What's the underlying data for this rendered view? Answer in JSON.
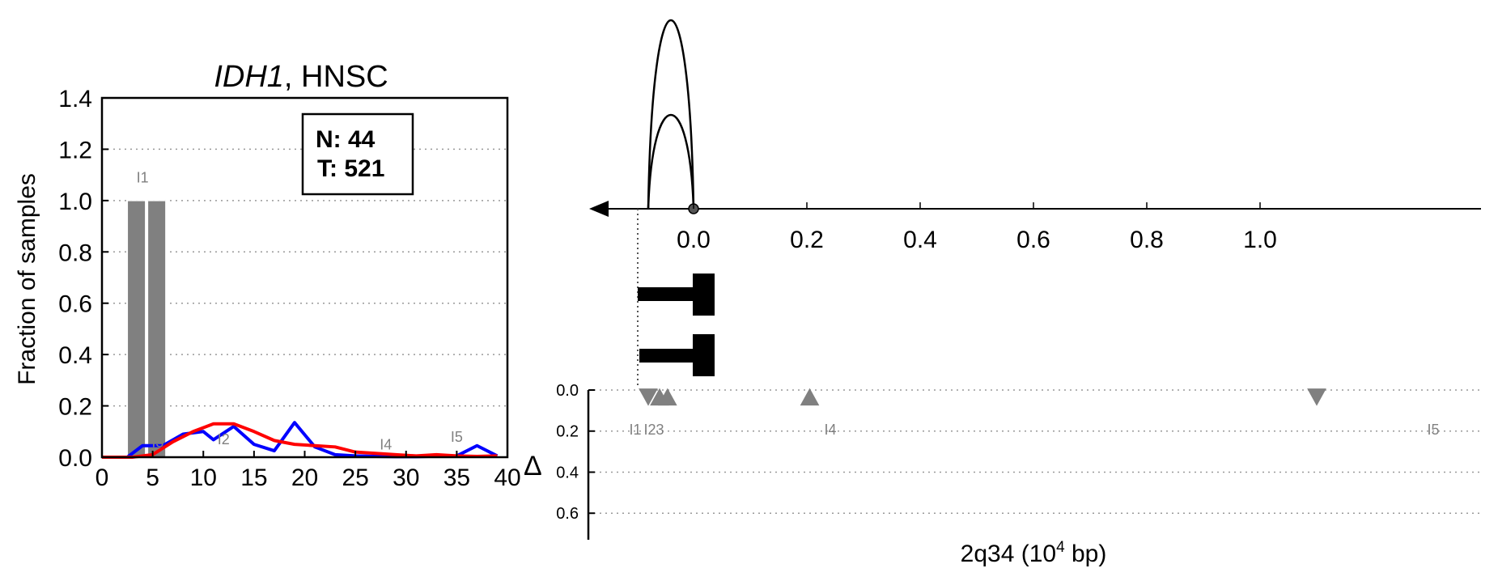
{
  "chart_data": [
    {
      "type": "bar",
      "title_gene": "IDH1",
      "title_rest": ", HNSC",
      "xlabel": "",
      "ylabel": "Fraction of samples",
      "xlim": [
        0,
        40
      ],
      "ylim": [
        0,
        1.4
      ],
      "xticks": [
        "0",
        "5",
        "10",
        "15",
        "20",
        "25",
        "30",
        "35",
        "40"
      ],
      "yticks": [
        "0.0",
        "0.2",
        "0.4",
        "0.6",
        "0.8",
        "1.0",
        "1.2",
        "1.4"
      ],
      "grid": "horizontal dotted",
      "legend_box": {
        "n_text": "N: 44",
        "t_text": "T: 521",
        "placement": "top-right"
      },
      "bars": [
        {
          "x0": 2.5,
          "x1": 4.3,
          "value": 1.0
        },
        {
          "x0": 4.5,
          "x1": 6.3,
          "value": 1.0
        }
      ],
      "bar_color": "#808080",
      "series": [
        {
          "color": "#0000ff",
          "x": [
            0,
            2.5,
            4,
            6,
            8,
            10,
            11,
            13,
            15,
            17,
            19,
            21,
            23,
            25,
            27,
            29,
            31,
            33,
            35,
            37,
            39
          ],
          "values": [
            0,
            0,
            0.045,
            0.045,
            0.09,
            0.1,
            0.068,
            0.12,
            0.05,
            0.025,
            0.135,
            0.04,
            0.01,
            0.005,
            0.003,
            0.002,
            0.002,
            0.004,
            0.005,
            0.045,
            0.005
          ]
        },
        {
          "color": "#ff0000",
          "x": [
            0,
            3,
            5,
            7,
            9,
            11,
            13,
            15,
            17,
            19,
            21,
            23,
            25,
            27,
            29,
            31,
            33,
            35,
            37,
            39
          ],
          "values": [
            0,
            0,
            0.01,
            0.06,
            0.1,
            0.13,
            0.13,
            0.1,
            0.065,
            0.05,
            0.045,
            0.04,
            0.02,
            0.015,
            0.01,
            0.005,
            0.01,
            0.005,
            0.003,
            0.005
          ]
        }
      ],
      "annotations": [
        {
          "label": "I1",
          "x": 4,
          "y": 1.07
        },
        {
          "label": "I2",
          "x": 12,
          "y": 0.05
        },
        {
          "label": "I3",
          "x": 5.5,
          "y": 0.04
        },
        {
          "label": "I4",
          "x": 28,
          "y": 0.03
        },
        {
          "label": "I5",
          "x": 35,
          "y": 0.06
        }
      ]
    },
    {
      "type": "scatter",
      "xlabel_main": "2q34 (10",
      "xlabel_sup": "4",
      "xlabel_tail": " bp)",
      "delta_label": "Δ",
      "xlim": [
        -0.15,
        1.18
      ],
      "xticks": [
        "0.0",
        "0.2",
        "0.4",
        "0.6",
        "0.8",
        "1.0"
      ],
      "ylim": [
        0,
        0.7
      ],
      "yticks": [
        "0.0",
        "0.2",
        "0.4",
        "0.6"
      ],
      "grid": "horizontal dotted",
      "arcs": [
        {
          "x_from": -0.08,
          "x_to": 0.0,
          "height": "tall"
        },
        {
          "x_from": -0.08,
          "x_to": 0.0,
          "height": "short"
        }
      ],
      "exon_blocks": 2,
      "markers": [
        {
          "label": "I1",
          "x": -0.08,
          "y": 0.03,
          "direction": "down"
        },
        {
          "label": "I2",
          "x": -0.06,
          "y": 0.03,
          "direction": "up"
        },
        {
          "label": "I3",
          "x": -0.046,
          "y": 0.03,
          "direction": "up"
        },
        {
          "label": "I4",
          "x": 0.205,
          "y": 0.03,
          "direction": "up"
        },
        {
          "label": "I5",
          "x": 1.1,
          "y": 0.03,
          "direction": "down"
        }
      ],
      "marker_color": "#808080",
      "tick_label_row": {
        "I1": "I1",
        "I23": "I23",
        "I4": "I4",
        "I5": "I5",
        "I2short": "I2"
      }
    }
  ]
}
